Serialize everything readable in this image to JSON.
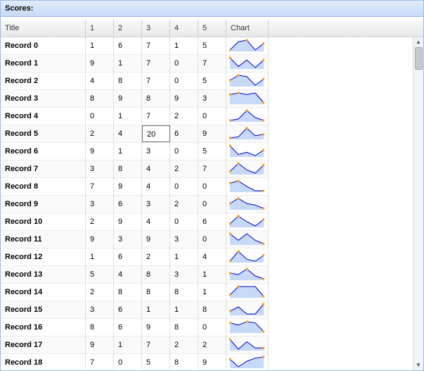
{
  "panel": {
    "title": "Scores:"
  },
  "columns": [
    "Title",
    "1",
    "2",
    "3",
    "4",
    "5",
    "Chart"
  ],
  "selected_cell": {
    "row": 5,
    "col": 3
  },
  "colors": {
    "line": "#0000cc",
    "fill": "#c6d9f7",
    "marker": "#f5a623"
  },
  "rows": [
    {
      "title": "Record 0",
      "values": [
        "1",
        "6",
        "7",
        "1",
        "5"
      ]
    },
    {
      "title": "Record 1",
      "values": [
        "9",
        "1",
        "7",
        "0",
        "7"
      ]
    },
    {
      "title": "Record 2",
      "values": [
        "4",
        "8",
        "7",
        "0",
        "5"
      ]
    },
    {
      "title": "Record 3",
      "values": [
        "8",
        "9",
        "8",
        "9",
        "3"
      ]
    },
    {
      "title": "Record 4",
      "values": [
        "0",
        "1",
        "7",
        "2",
        "0"
      ]
    },
    {
      "title": "Record 5",
      "values": [
        "2",
        "4",
        "20",
        "6",
        "9"
      ]
    },
    {
      "title": "Record 6",
      "values": [
        "9",
        "1",
        "3",
        "0",
        "5"
      ]
    },
    {
      "title": "Record 7",
      "values": [
        "3",
        "8",
        "4",
        "2",
        "7"
      ]
    },
    {
      "title": "Record 8",
      "values": [
        "7",
        "9",
        "4",
        "0",
        "0"
      ]
    },
    {
      "title": "Record 9",
      "values": [
        "3",
        "6",
        "3",
        "2",
        "0"
      ]
    },
    {
      "title": "Record 10",
      "values": [
        "2",
        "9",
        "4",
        "0",
        "6"
      ]
    },
    {
      "title": "Record 11",
      "values": [
        "9",
        "3",
        "9",
        "3",
        "0"
      ]
    },
    {
      "title": "Record 12",
      "values": [
        "1",
        "6",
        "2",
        "1",
        "4"
      ]
    },
    {
      "title": "Record 13",
      "values": [
        "5",
        "4",
        "8",
        "3",
        "1"
      ]
    },
    {
      "title": "Record 14",
      "values": [
        "2",
        "8",
        "8",
        "8",
        "1"
      ]
    },
    {
      "title": "Record 15",
      "values": [
        "3",
        "6",
        "1",
        "1",
        "8"
      ]
    },
    {
      "title": "Record 16",
      "values": [
        "8",
        "6",
        "9",
        "8",
        "0"
      ]
    },
    {
      "title": "Record 17",
      "values": [
        "9",
        "1",
        "7",
        "2",
        "2"
      ]
    },
    {
      "title": "Record 18",
      "values": [
        "7",
        "0",
        "5",
        "8",
        "9"
      ]
    }
  ],
  "scrollbar": {
    "up_icon": "arrow-up-icon",
    "down_icon": "arrow-down-icon"
  }
}
